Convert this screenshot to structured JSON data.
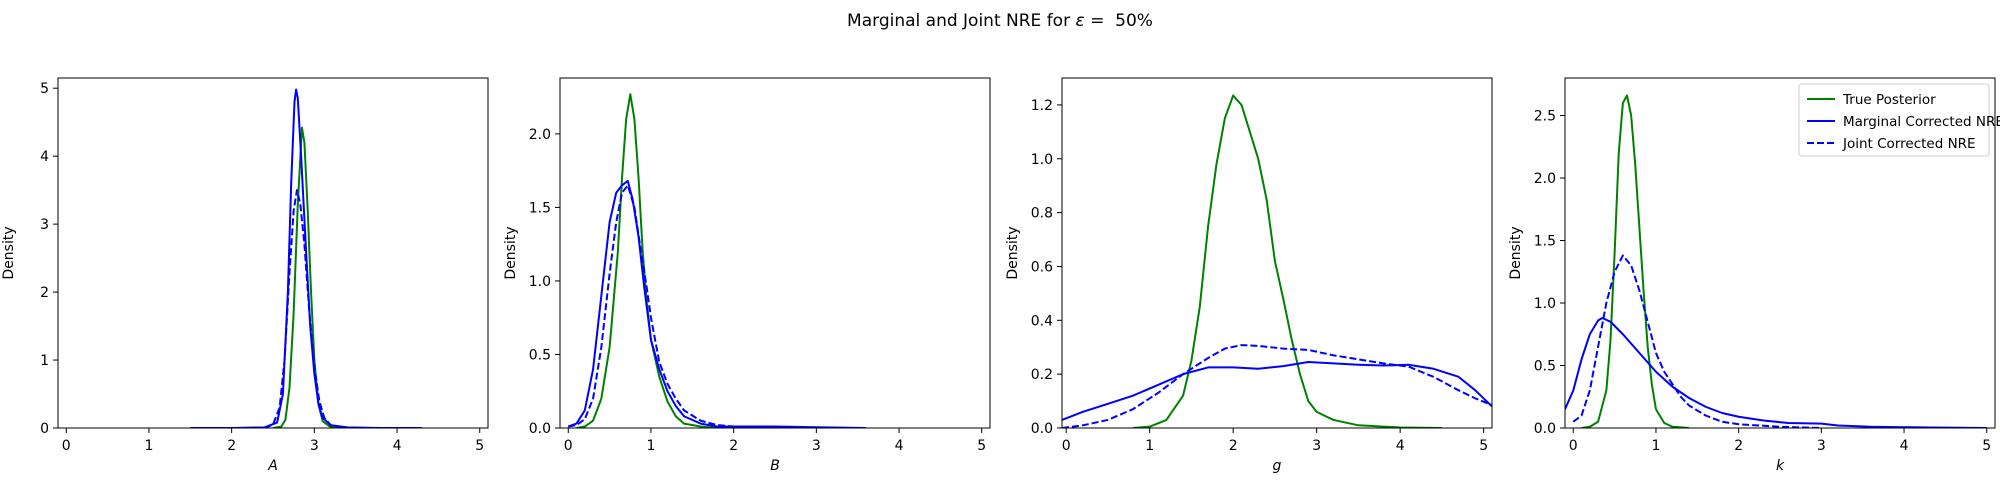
{
  "figure": {
    "title_prefix": "Marginal and Joint NRE for ",
    "title_symbol": "ε",
    "title_suffix": " =  50%"
  },
  "chart_data": [
    {
      "type": "line",
      "xlabel": "A",
      "ylabel": "Density",
      "xlim": [
        -0.1,
        5.1
      ],
      "ylim": [
        0,
        5.15
      ],
      "xticks": [
        0,
        1,
        2,
        3,
        4,
        5
      ],
      "yticks": [
        0,
        1,
        2,
        3,
        4,
        5
      ],
      "series": [
        {
          "name": "True Posterior",
          "color": "#008000",
          "dash": false,
          "points": [
            [
              2.5,
              0
            ],
            [
              2.6,
              0.02
            ],
            [
              2.65,
              0.12
            ],
            [
              2.7,
              0.6
            ],
            [
              2.75,
              1.7
            ],
            [
              2.8,
              3.3
            ],
            [
              2.85,
              4.42
            ],
            [
              2.88,
              4.2
            ],
            [
              2.92,
              3.2
            ],
            [
              2.96,
              2.0
            ],
            [
              3.0,
              1.0
            ],
            [
              3.05,
              0.35
            ],
            [
              3.1,
              0.1
            ],
            [
              3.2,
              0.01
            ],
            [
              3.4,
              0
            ]
          ]
        },
        {
          "name": "Marginal Corrected NRE",
          "color": "#0000ff",
          "dash": false,
          "points": [
            [
              1.5,
              0
            ],
            [
              2.0,
              0
            ],
            [
              2.4,
              0.01
            ],
            [
              2.55,
              0.08
            ],
            [
              2.62,
              0.5
            ],
            [
              2.68,
              2.0
            ],
            [
              2.72,
              3.6
            ],
            [
              2.76,
              4.8
            ],
            [
              2.78,
              4.98
            ],
            [
              2.8,
              4.85
            ],
            [
              2.84,
              4.0
            ],
            [
              2.9,
              2.6
            ],
            [
              2.95,
              1.5
            ],
            [
              3.0,
              0.8
            ],
            [
              3.05,
              0.35
            ],
            [
              3.1,
              0.15
            ],
            [
              3.2,
              0.04
            ],
            [
              3.4,
              0.01
            ],
            [
              3.8,
              0
            ],
            [
              4.3,
              0
            ]
          ]
        },
        {
          "name": "Joint Corrected NRE",
          "color": "#0000ff",
          "dash": true,
          "points": [
            [
              2.4,
              0
            ],
            [
              2.5,
              0.05
            ],
            [
              2.58,
              0.3
            ],
            [
              2.64,
              1.0
            ],
            [
              2.7,
              2.3
            ],
            [
              2.75,
              3.2
            ],
            [
              2.79,
              3.5
            ],
            [
              2.83,
              3.3
            ],
            [
              2.88,
              2.7
            ],
            [
              2.94,
              1.7
            ],
            [
              3.0,
              0.9
            ],
            [
              3.06,
              0.4
            ],
            [
              3.12,
              0.15
            ],
            [
              3.2,
              0.04
            ],
            [
              3.4,
              0
            ]
          ]
        }
      ]
    },
    {
      "type": "line",
      "xlabel": "B",
      "ylabel": "Density",
      "xlim": [
        -0.1,
        5.1
      ],
      "ylim": [
        0,
        2.38
      ],
      "xticks": [
        0,
        1,
        2,
        3,
        4,
        5
      ],
      "yticks": [
        0.0,
        0.5,
        1.0,
        1.5,
        2.0
      ],
      "series": [
        {
          "name": "True Posterior",
          "color": "#008000",
          "dash": false,
          "points": [
            [
              0.1,
              0
            ],
            [
              0.2,
              0.01
            ],
            [
              0.3,
              0.05
            ],
            [
              0.4,
              0.2
            ],
            [
              0.5,
              0.55
            ],
            [
              0.6,
              1.2
            ],
            [
              0.65,
              1.7
            ],
            [
              0.7,
              2.1
            ],
            [
              0.75,
              2.27
            ],
            [
              0.8,
              2.1
            ],
            [
              0.85,
              1.7
            ],
            [
              0.9,
              1.2
            ],
            [
              0.95,
              0.85
            ],
            [
              1.0,
              0.6
            ],
            [
              1.1,
              0.35
            ],
            [
              1.2,
              0.18
            ],
            [
              1.3,
              0.08
            ],
            [
              1.4,
              0.03
            ],
            [
              1.6,
              0.01
            ],
            [
              1.8,
              0
            ]
          ]
        },
        {
          "name": "Marginal Corrected NRE",
          "color": "#0000ff",
          "dash": false,
          "points": [
            [
              0,
              0.01
            ],
            [
              0.1,
              0.03
            ],
            [
              0.2,
              0.12
            ],
            [
              0.3,
              0.4
            ],
            [
              0.4,
              0.9
            ],
            [
              0.5,
              1.4
            ],
            [
              0.58,
              1.6
            ],
            [
              0.65,
              1.65
            ],
            [
              0.72,
              1.68
            ],
            [
              0.78,
              1.55
            ],
            [
              0.85,
              1.3
            ],
            [
              0.92,
              0.95
            ],
            [
              1.0,
              0.6
            ],
            [
              1.1,
              0.4
            ],
            [
              1.2,
              0.25
            ],
            [
              1.3,
              0.15
            ],
            [
              1.4,
              0.08
            ],
            [
              1.6,
              0.03
            ],
            [
              1.8,
              0.01
            ],
            [
              2.5,
              0.01
            ],
            [
              3.0,
              0.005
            ],
            [
              3.6,
              0
            ]
          ]
        },
        {
          "name": "Joint Corrected NRE",
          "color": "#0000ff",
          "dash": true,
          "points": [
            [
              0,
              0.01
            ],
            [
              0.1,
              0.02
            ],
            [
              0.2,
              0.06
            ],
            [
              0.3,
              0.2
            ],
            [
              0.4,
              0.55
            ],
            [
              0.5,
              1.05
            ],
            [
              0.58,
              1.4
            ],
            [
              0.65,
              1.6
            ],
            [
              0.72,
              1.65
            ],
            [
              0.8,
              1.5
            ],
            [
              0.88,
              1.2
            ],
            [
              0.95,
              0.95
            ],
            [
              1.0,
              0.75
            ],
            [
              1.1,
              0.45
            ],
            [
              1.2,
              0.3
            ],
            [
              1.3,
              0.2
            ],
            [
              1.4,
              0.12
            ],
            [
              1.6,
              0.05
            ],
            [
              1.8,
              0.02
            ],
            [
              2.0,
              0.01
            ],
            [
              2.5,
              0
            ]
          ]
        }
      ]
    },
    {
      "type": "line",
      "xlabel": "g",
      "ylabel": "Density",
      "xlim": [
        -0.05,
        5.1
      ],
      "ylim": [
        0,
        1.3
      ],
      "xticks": [
        0,
        1,
        2,
        3,
        4,
        5
      ],
      "yticks": [
        0.0,
        0.2,
        0.4,
        0.6,
        0.8,
        1.0,
        1.2
      ],
      "series": [
        {
          "name": "True Posterior",
          "color": "#008000",
          "dash": false,
          "points": [
            [
              0.8,
              0
            ],
            [
              1.0,
              0.005
            ],
            [
              1.2,
              0.03
            ],
            [
              1.4,
              0.12
            ],
            [
              1.5,
              0.25
            ],
            [
              1.6,
              0.45
            ],
            [
              1.7,
              0.75
            ],
            [
              1.8,
              0.98
            ],
            [
              1.9,
              1.15
            ],
            [
              2.0,
              1.235
            ],
            [
              2.1,
              1.2
            ],
            [
              2.2,
              1.1
            ],
            [
              2.3,
              1.0
            ],
            [
              2.4,
              0.85
            ],
            [
              2.5,
              0.62
            ],
            [
              2.6,
              0.48
            ],
            [
              2.7,
              0.33
            ],
            [
              2.8,
              0.2
            ],
            [
              2.9,
              0.1
            ],
            [
              3.0,
              0.06
            ],
            [
              3.2,
              0.03
            ],
            [
              3.5,
              0.01
            ],
            [
              4.0,
              0.002
            ],
            [
              4.5,
              0
            ]
          ]
        },
        {
          "name": "Marginal Corrected NRE",
          "color": "#0000ff",
          "dash": false,
          "points": [
            [
              -0.05,
              0.03
            ],
            [
              0.2,
              0.06
            ],
            [
              0.5,
              0.09
            ],
            [
              0.8,
              0.12
            ],
            [
              1.1,
              0.16
            ],
            [
              1.4,
              0.2
            ],
            [
              1.7,
              0.225
            ],
            [
              2.0,
              0.225
            ],
            [
              2.3,
              0.22
            ],
            [
              2.6,
              0.23
            ],
            [
              2.9,
              0.245
            ],
            [
              3.2,
              0.24
            ],
            [
              3.5,
              0.235
            ],
            [
              3.8,
              0.232
            ],
            [
              4.1,
              0.235
            ],
            [
              4.4,
              0.22
            ],
            [
              4.7,
              0.19
            ],
            [
              4.9,
              0.14
            ],
            [
              5.1,
              0.08
            ]
          ]
        },
        {
          "name": "Joint Corrected NRE",
          "color": "#0000ff",
          "dash": true,
          "points": [
            [
              -0.05,
              0.0
            ],
            [
              0.2,
              0.01
            ],
            [
              0.5,
              0.03
            ],
            [
              0.8,
              0.07
            ],
            [
              1.1,
              0.13
            ],
            [
              1.4,
              0.2
            ],
            [
              1.7,
              0.26
            ],
            [
              1.9,
              0.295
            ],
            [
              2.1,
              0.308
            ],
            [
              2.3,
              0.305
            ],
            [
              2.6,
              0.295
            ],
            [
              2.9,
              0.29
            ],
            [
              3.2,
              0.27
            ],
            [
              3.5,
              0.255
            ],
            [
              3.8,
              0.24
            ],
            [
              4.1,
              0.228
            ],
            [
              4.4,
              0.19
            ],
            [
              4.7,
              0.14
            ],
            [
              4.9,
              0.11
            ],
            [
              5.1,
              0.085
            ]
          ]
        }
      ]
    },
    {
      "type": "line",
      "xlabel": "k",
      "ylabel": "Density",
      "xlim": [
        -0.1,
        5.1
      ],
      "ylim": [
        0,
        2.8
      ],
      "xticks": [
        0,
        1,
        2,
        3,
        4,
        5
      ],
      "yticks": [
        0.0,
        0.5,
        1.0,
        1.5,
        2.0,
        2.5
      ],
      "legend": {
        "loc": "upper right"
      },
      "series": [
        {
          "name": "True Posterior",
          "color": "#008000",
          "dash": false,
          "points": [
            [
              0.1,
              0
            ],
            [
              0.2,
              0.01
            ],
            [
              0.3,
              0.05
            ],
            [
              0.4,
              0.3
            ],
            [
              0.45,
              0.7
            ],
            [
              0.5,
              1.4
            ],
            [
              0.55,
              2.2
            ],
            [
              0.6,
              2.6
            ],
            [
              0.65,
              2.66
            ],
            [
              0.7,
              2.5
            ],
            [
              0.75,
              2.1
            ],
            [
              0.8,
              1.6
            ],
            [
              0.85,
              1.1
            ],
            [
              0.9,
              0.65
            ],
            [
              0.95,
              0.35
            ],
            [
              1.0,
              0.15
            ],
            [
              1.1,
              0.04
            ],
            [
              1.2,
              0.01
            ],
            [
              1.4,
              0
            ]
          ]
        },
        {
          "name": "Marginal Corrected NRE",
          "color": "#0000ff",
          "dash": false,
          "points": [
            [
              -0.1,
              0.15
            ],
            [
              0,
              0.3
            ],
            [
              0.1,
              0.55
            ],
            [
              0.2,
              0.75
            ],
            [
              0.3,
              0.86
            ],
            [
              0.35,
              0.88
            ],
            [
              0.45,
              0.85
            ],
            [
              0.6,
              0.75
            ],
            [
              0.8,
              0.6
            ],
            [
              1.0,
              0.45
            ],
            [
              1.2,
              0.33
            ],
            [
              1.4,
              0.24
            ],
            [
              1.6,
              0.17
            ],
            [
              1.8,
              0.12
            ],
            [
              2.0,
              0.09
            ],
            [
              2.3,
              0.06
            ],
            [
              2.6,
              0.04
            ],
            [
              3.0,
              0.035
            ],
            [
              3.2,
              0.02
            ],
            [
              3.6,
              0.01
            ],
            [
              4.2,
              0.005
            ],
            [
              5.0,
              0
            ]
          ]
        },
        {
          "name": "Joint Corrected NRE",
          "color": "#0000ff",
          "dash": true,
          "points": [
            [
              0,
              0.05
            ],
            [
              0.1,
              0.1
            ],
            [
              0.2,
              0.3
            ],
            [
              0.3,
              0.65
            ],
            [
              0.4,
              1.0
            ],
            [
              0.5,
              1.25
            ],
            [
              0.6,
              1.38
            ],
            [
              0.7,
              1.3
            ],
            [
              0.8,
              1.1
            ],
            [
              0.9,
              0.85
            ],
            [
              1.0,
              0.6
            ],
            [
              1.1,
              0.45
            ],
            [
              1.2,
              0.35
            ],
            [
              1.3,
              0.25
            ],
            [
              1.4,
              0.18
            ],
            [
              1.6,
              0.1
            ],
            [
              1.8,
              0.05
            ],
            [
              2.0,
              0.03
            ],
            [
              2.5,
              0.01
            ],
            [
              3.0,
              0
            ]
          ]
        }
      ]
    }
  ]
}
